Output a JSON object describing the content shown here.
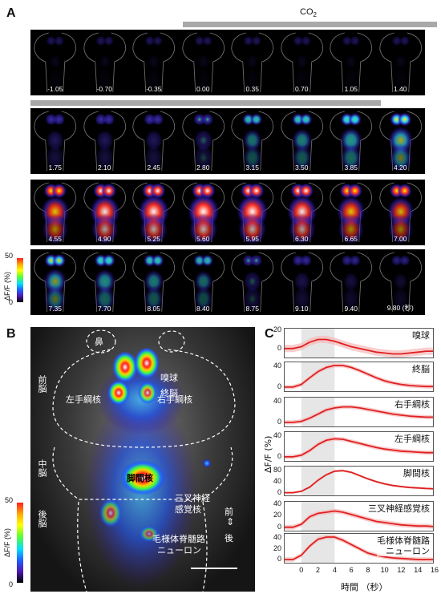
{
  "panels": {
    "a": "A",
    "b": "B",
    "c": "C"
  },
  "panel_a": {
    "stimulus_label": "CO",
    "stimulus_sub": "2",
    "rows": [
      [
        "-1.05",
        "-0.70",
        "-0.35",
        "0.00",
        "0.35",
        "0.70",
        "1.05",
        "1.40"
      ],
      [
        "1.75",
        "2.10",
        "2.45",
        "2.80",
        "3.15",
        "3.50",
        "3.85",
        "4.20"
      ],
      [
        "4.55",
        "4.90",
        "5.25",
        "5.60",
        "5.95",
        "6.30",
        "6.65",
        "7.00"
      ],
      [
        "7.35",
        "7.70",
        "8.05",
        "8.40",
        "8.75",
        "9.10",
        "9.40",
        "9.80 (秒)"
      ]
    ],
    "intensity": [
      [
        0.05,
        0.05,
        0.05,
        0.05,
        0.05,
        0.05,
        0.05,
        0.05
      ],
      [
        0.35,
        0.35,
        0.35,
        0.4,
        0.45,
        0.5,
        0.6,
        0.7
      ],
      [
        0.85,
        0.92,
        0.96,
        1.0,
        0.98,
        0.92,
        0.85,
        0.78
      ],
      [
        0.62,
        0.55,
        0.48,
        0.42,
        0.36,
        0.3,
        0.25,
        0.2
      ]
    ],
    "colorbar": {
      "max": "50",
      "min": "0",
      "label": "ΔF/F (%)"
    }
  },
  "panel_b": {
    "labels": {
      "nose": "鼻",
      "olfactory_bulb": "嗅球",
      "telencephalon": "終脳",
      "left_habenula": "左手綱核",
      "right_habenula": "右手綱核",
      "forebrain": "前脳",
      "midbrain": "中脳",
      "hindbrain": "後脳",
      "interpeduncular": "脚間核",
      "trigeminal_1": "三叉神経",
      "trigeminal_2": "感覚核",
      "anterior": "前",
      "posterior": "後",
      "spinal_1": "毛様体脊髄路",
      "spinal_2": "ニューロン"
    },
    "colorbar": {
      "max": "50",
      "min": "0",
      "label": "ΔF/F (%)"
    }
  },
  "panel_c": {
    "ylabel": "ΔF/F (%)",
    "xlabel": "時間 （秒）"
  },
  "chart_data": {
    "type": "line",
    "x": [
      -2,
      -1,
      0,
      1,
      2,
      3,
      4,
      5,
      6,
      7,
      8,
      9,
      10,
      11,
      12,
      13,
      14,
      15,
      16
    ],
    "xticks": [
      "0",
      "2",
      "4",
      "6",
      "8",
      "10",
      "12",
      "14",
      "16"
    ],
    "xlim": [
      -2,
      16
    ],
    "shaded_region": [
      0,
      4
    ],
    "xlabel": "時間 （秒）",
    "ylabel": "ΔF/F (%)",
    "series": [
      {
        "name": "嗅球",
        "yticks": [
          "20",
          "0"
        ],
        "ylim": [
          -10,
          22
        ],
        "values": [
          0,
          0,
          2,
          7,
          10,
          10,
          8,
          5,
          2,
          0,
          -2,
          -4,
          -5,
          -6,
          -6,
          -5,
          -4,
          -3,
          -3
        ]
      },
      {
        "name": "終脳",
        "yticks": [
          "40",
          "0"
        ],
        "ylim": [
          -8,
          48
        ],
        "values": [
          0,
          0,
          5,
          18,
          30,
          38,
          42,
          42,
          38,
          32,
          25,
          18,
          12,
          8,
          5,
          3,
          2,
          1,
          1
        ]
      },
      {
        "name": "右手綱核",
        "yticks": [
          "40",
          "0"
        ],
        "ylim": [
          -8,
          48
        ],
        "values": [
          0,
          0,
          2,
          8,
          16,
          24,
          28,
          30,
          30,
          28,
          25,
          22,
          19,
          16,
          14,
          12,
          11,
          10,
          10
        ]
      },
      {
        "name": "左手綱核",
        "yticks": [
          "40",
          "0"
        ],
        "ylim": [
          -8,
          48
        ],
        "values": [
          0,
          0,
          3,
          12,
          24,
          32,
          35,
          34,
          30,
          26,
          22,
          18,
          15,
          13,
          11,
          10,
          9,
          8,
          8
        ]
      },
      {
        "name": "脚間核",
        "yticks": [
          "80",
          "40",
          "0"
        ],
        "ylim": [
          -10,
          95
        ],
        "values": [
          0,
          0,
          5,
          20,
          45,
          65,
          78,
          80,
          74,
          62,
          50,
          40,
          32,
          26,
          22,
          19,
          17,
          15,
          14
        ]
      },
      {
        "name": "三叉神経感覚核",
        "yticks": [
          "40",
          "20",
          "0"
        ],
        "ylim": [
          -6,
          44
        ],
        "values": [
          0,
          0,
          5,
          18,
          24,
          26,
          28,
          26,
          22,
          18,
          14,
          10,
          8,
          6,
          4,
          3,
          2,
          2,
          1
        ]
      },
      {
        "name": "毛様体脊髄路\nニューロン",
        "yticks": [
          "40",
          "20",
          "0"
        ],
        "ylim": [
          -6,
          48
        ],
        "values": [
          0,
          0,
          8,
          25,
          38,
          42,
          42,
          36,
          28,
          20,
          12,
          8,
          5,
          3,
          2,
          1,
          0,
          0,
          0
        ]
      }
    ]
  }
}
